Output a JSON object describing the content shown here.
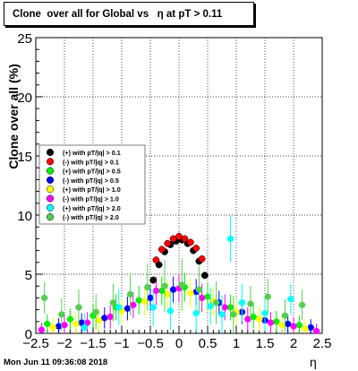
{
  "title": "Clone  over all for Global vs   η at pT > 0.11",
  "footer": "Mon Jun 11 09:36:08 2018",
  "chart_data": {
    "type": "scatter",
    "title": "Clone  over all for Global vs   η at pT > 0.11",
    "xlabel": "η",
    "ylabel": "Clone  over all (%)",
    "xlim": [
      -2.5,
      2.5
    ],
    "ylim": [
      0,
      25
    ],
    "xticks": [
      -2.5,
      -2,
      -1.5,
      -1,
      -0.5,
      0,
      0.5,
      1,
      1.5,
      2,
      2.5
    ],
    "xtick_labels": [
      "−2.5",
      "−2",
      "−1.5",
      "−1",
      "−0.5",
      "0",
      "0.5",
      "1",
      "1.5",
      "2",
      "2.5"
    ],
    "yticks": [
      0,
      5,
      10,
      15,
      20,
      25
    ],
    "grid": true,
    "legend_position": "left-middle",
    "series": [
      {
        "name": "(+) with pT/|q| > 0.1",
        "color": "#000000",
        "x": [
          -0.45,
          -0.35,
          -0.25,
          -0.15,
          -0.05,
          0.05,
          0.15,
          0.25,
          0.35,
          0.45
        ],
        "y": [
          4.5,
          5.8,
          6.9,
          7.5,
          7.8,
          7.9,
          7.6,
          7.0,
          6.1,
          4.9
        ],
        "err": [
          0.3,
          0.3,
          0.3,
          0.3,
          0.3,
          0.3,
          0.3,
          0.3,
          0.3,
          0.3
        ]
      },
      {
        "name": "(-) with pT/|q| > 0.1",
        "color": "#ff0000",
        "x": [
          -0.4,
          -0.3,
          -0.2,
          -0.1,
          0.0,
          0.1,
          0.2,
          0.3,
          0.4
        ],
        "y": [
          6.2,
          7.1,
          7.6,
          8.0,
          8.2,
          8.0,
          7.7,
          7.2,
          6.3
        ],
        "err": [
          0.3,
          0.3,
          0.3,
          0.3,
          0.3,
          0.3,
          0.3,
          0.3,
          0.3
        ]
      },
      {
        "name": "(+) with pT/|q| > 0.5",
        "color": "#00ee00",
        "x": [
          -2.3,
          -1.9,
          -1.5,
          -1.1,
          -0.7,
          -0.3,
          0.1,
          0.5,
          0.9,
          1.3,
          1.7,
          2.1
        ],
        "y": [
          0.8,
          1.2,
          1.5,
          2.2,
          2.8,
          3.6,
          3.9,
          3.1,
          2.2,
          1.4,
          1.0,
          0.7
        ],
        "err": [
          0.8,
          0.9,
          1.0,
          1.1,
          1.2,
          1.2,
          1.2,
          1.2,
          1.1,
          1.0,
          0.9,
          0.8
        ]
      },
      {
        "name": "(-) with pT/|q| > 0.5",
        "color": "#0000ff",
        "x": [
          -2.1,
          -1.7,
          -1.3,
          -0.9,
          -0.5,
          -0.1,
          0.3,
          0.7,
          1.1,
          1.5,
          1.9,
          2.3
        ],
        "y": [
          0.6,
          0.9,
          1.3,
          2.1,
          3.0,
          3.7,
          3.5,
          2.6,
          1.8,
          1.1,
          0.8,
          0.5
        ],
        "err": [
          0.7,
          0.8,
          0.9,
          1.0,
          1.1,
          1.1,
          1.1,
          1.0,
          1.0,
          0.9,
          0.8,
          0.7
        ]
      },
      {
        "name": "(+) with pT/|q| > 1.0",
        "color": "#ffff00",
        "x": [
          -2.2,
          -1.8,
          -1.4,
          -1.0,
          -0.6,
          -0.2,
          0.2,
          0.6,
          1.0,
          1.4,
          1.8,
          2.2
        ],
        "y": [
          0.5,
          0.8,
          1.1,
          1.9,
          2.7,
          3.3,
          3.4,
          2.7,
          1.8,
          1.2,
          0.7,
          0.4
        ],
        "err": [
          0.8,
          0.9,
          1.0,
          1.1,
          1.2,
          1.2,
          1.2,
          1.2,
          1.1,
          1.0,
          0.9,
          0.8
        ]
      },
      {
        "name": "(-) with pT/|q| > 1.0",
        "color": "#ff00ff",
        "x": [
          -2.4,
          -2.0,
          -1.6,
          -1.2,
          -0.8,
          -0.4,
          0.0,
          0.4,
          0.8,
          1.2,
          1.6,
          2.0,
          2.4
        ],
        "y": [
          0.3,
          0.7,
          0.9,
          1.4,
          2.4,
          3.6,
          3.8,
          3.0,
          2.2,
          1.2,
          0.9,
          0.6,
          0.2
        ],
        "err": [
          0.6,
          0.8,
          0.9,
          1.0,
          1.1,
          1.2,
          1.2,
          1.2,
          1.1,
          1.0,
          0.9,
          0.8,
          0.6
        ]
      },
      {
        "name": "(+) with pT/|q| > 2.0",
        "color": "#00ffff",
        "x": [
          -1.65,
          -1.05,
          -0.45,
          -0.15,
          0.3,
          0.55,
          0.75,
          0.9,
          1.1,
          1.5,
          1.95
        ],
        "y": [
          0.5,
          2.2,
          2.2,
          1.9,
          1.7,
          2.3,
          1.6,
          8.0,
          2.6,
          1.7,
          2.9
        ],
        "err": [
          1.2,
          1.5,
          1.6,
          1.6,
          1.6,
          1.6,
          1.6,
          2.0,
          1.6,
          1.5,
          1.3
        ]
      },
      {
        "name": "(-) with pT/|q| > 2.0",
        "color": "#55cc55",
        "x": [
          -2.35,
          -2.05,
          -1.75,
          -1.45,
          -1.15,
          -0.85,
          -0.55,
          -0.25,
          0.05,
          0.35,
          0.65,
          0.95,
          1.25,
          1.55,
          1.85,
          2.15
        ],
        "y": [
          3.0,
          1.6,
          2.2,
          1.8,
          2.6,
          3.3,
          3.9,
          4.0,
          4.1,
          3.7,
          2.6,
          1.6,
          2.5,
          3.1,
          1.5,
          2.4
        ],
        "err": [
          1.3,
          1.4,
          1.5,
          1.5,
          1.6,
          1.8,
          2.0,
          2.2,
          2.2,
          2.0,
          1.8,
          1.6,
          1.5,
          1.5,
          1.4,
          1.3
        ]
      }
    ]
  }
}
